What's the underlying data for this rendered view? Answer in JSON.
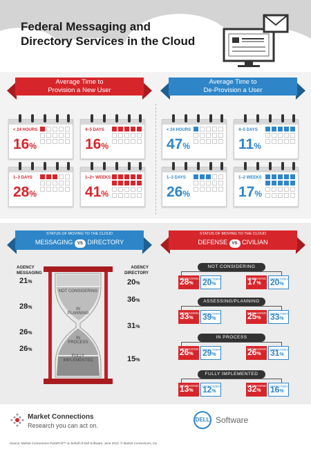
{
  "title": [
    "Federal Messaging and",
    "Directory Services in the Cloud"
  ],
  "provision": {
    "header": [
      "Average Time to",
      "Provision a New User"
    ],
    "cards": [
      {
        "label": "< 24 HOURS",
        "value": "16",
        "unit": "%",
        "filled": 1
      },
      {
        "label": "4–5 DAYS",
        "value": "16",
        "unit": "%",
        "filled": 5
      },
      {
        "label": "1–3 DAYS",
        "value": "28",
        "unit": "%",
        "filled": 3
      },
      {
        "label": "1–2+ WEEKS",
        "value": "41",
        "unit": "%",
        "filled": 10
      }
    ]
  },
  "deprovision": {
    "header": [
      "Average Time to",
      "De-Provision a User"
    ],
    "cards": [
      {
        "label": "< 24 HOURS",
        "value": "47",
        "unit": "%",
        "filled": 1
      },
      {
        "label": "4–5 DAYS",
        "value": "11",
        "unit": "%",
        "filled": 5
      },
      {
        "label": "1–3 DAYS",
        "value": "26",
        "unit": "%",
        "filled": 3
      },
      {
        "label": "1–2 WEEKS",
        "value": "17",
        "unit": "%",
        "filled": 10
      }
    ]
  },
  "messaging_directory": {
    "header_small": "STATUS OF MOVING TO THE CLOUD",
    "left": "MESSAGING",
    "vs": "VS",
    "right": "DIRECTORY",
    "col_left": [
      "AGENCY",
      "MESSAGING"
    ],
    "col_right": [
      "AGENCY",
      "DIRECTORY"
    ],
    "stages": [
      {
        "name": [
          "NOT CONSIDERING"
        ],
        "messaging": "21",
        "directory": "20"
      },
      {
        "name": [
          "IN",
          "PLANNING"
        ],
        "messaging": "28",
        "directory": "36"
      },
      {
        "name": [
          "IN",
          "PROCESS"
        ],
        "messaging": "26",
        "directory": "31"
      },
      {
        "name": [
          "FULLY",
          "IMPLEMENTED"
        ],
        "messaging": "26",
        "directory": "15"
      }
    ],
    "pct": "%"
  },
  "defense_civilian": {
    "header_small": "STATUS OF MOVING TO THE CLOUD",
    "left": "DEFENSE",
    "vs": "VS",
    "right": "CIVILIAN",
    "chip_labels": {
      "messaging": "MESSAGING",
      "directory": "DIRECTORY"
    },
    "groups": [
      {
        "name": "NOT CONSIDERING",
        "defense": {
          "messaging": "28",
          "directory": "20"
        },
        "civilian": {
          "messaging": "17",
          "directory": "20"
        }
      },
      {
        "name": "ASSESSING/PLANNING",
        "defense": {
          "messaging": "33",
          "directory": "39"
        },
        "civilian": {
          "messaging": "25",
          "directory": "33"
        }
      },
      {
        "name": "IN PROCESS",
        "defense": {
          "messaging": "26",
          "directory": "29"
        },
        "civilian": {
          "messaging": "26",
          "directory": "31"
        }
      },
      {
        "name": "FULLY IMPLEMENTED",
        "defense": {
          "messaging": "13",
          "directory": "12"
        },
        "civilian": {
          "messaging": "32",
          "directory": "16"
        }
      }
    ],
    "pct": "%"
  },
  "footer": {
    "brand": "Market Connections",
    "tagline": "Research you can act on.",
    "dell": "DELL",
    "software": "Software",
    "source": "Source: Market Connections PulsePoll™ on behalf of Dell Software, June 2013. © Market Connections, Inc."
  },
  "colors": {
    "red": "#d7262b",
    "blue": "#2e86c8",
    "dark": "#333333"
  }
}
